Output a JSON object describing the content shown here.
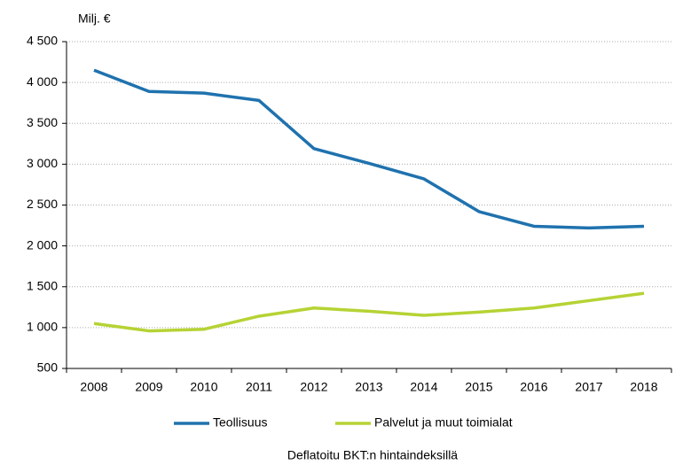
{
  "chart_data": {
    "type": "line",
    "y_axis_label": "Milj. €",
    "note": "Deflatoitu BKT:n hintaindeksillä",
    "categories": [
      "2008",
      "2009",
      "2010",
      "2011",
      "2012",
      "2013",
      "2014",
      "2015",
      "2016",
      "2017",
      "2018"
    ],
    "series": [
      {
        "name": "Teollisuus",
        "color": "#1f72ae",
        "values": [
          4150,
          3890,
          3870,
          3780,
          3190,
          3010,
          2820,
          2420,
          2240,
          2220,
          2240
        ]
      },
      {
        "name": "Palvelut ja muut toimialat",
        "color": "#b5d334",
        "values": [
          1050,
          960,
          980,
          1140,
          1240,
          1200,
          1150,
          1190,
          1240,
          1330,
          1420
        ]
      }
    ],
    "ylim": [
      500,
      4500
    ],
    "yticks": [
      500,
      {
        "value": 1000,
        "label": "1 000"
      },
      {
        "value": 1500,
        "label": "1 500"
      },
      {
        "value": 2000,
        "label": "2 000"
      },
      {
        "value": 2500,
        "label": "2 500"
      },
      {
        "value": 3000,
        "label": "3 000"
      },
      {
        "value": 3500,
        "label": "3 500"
      },
      {
        "value": 4000,
        "label": "4 000"
      },
      {
        "value": 4500,
        "label": "4 500"
      }
    ],
    "grid": true,
    "legend": "bottom"
  }
}
